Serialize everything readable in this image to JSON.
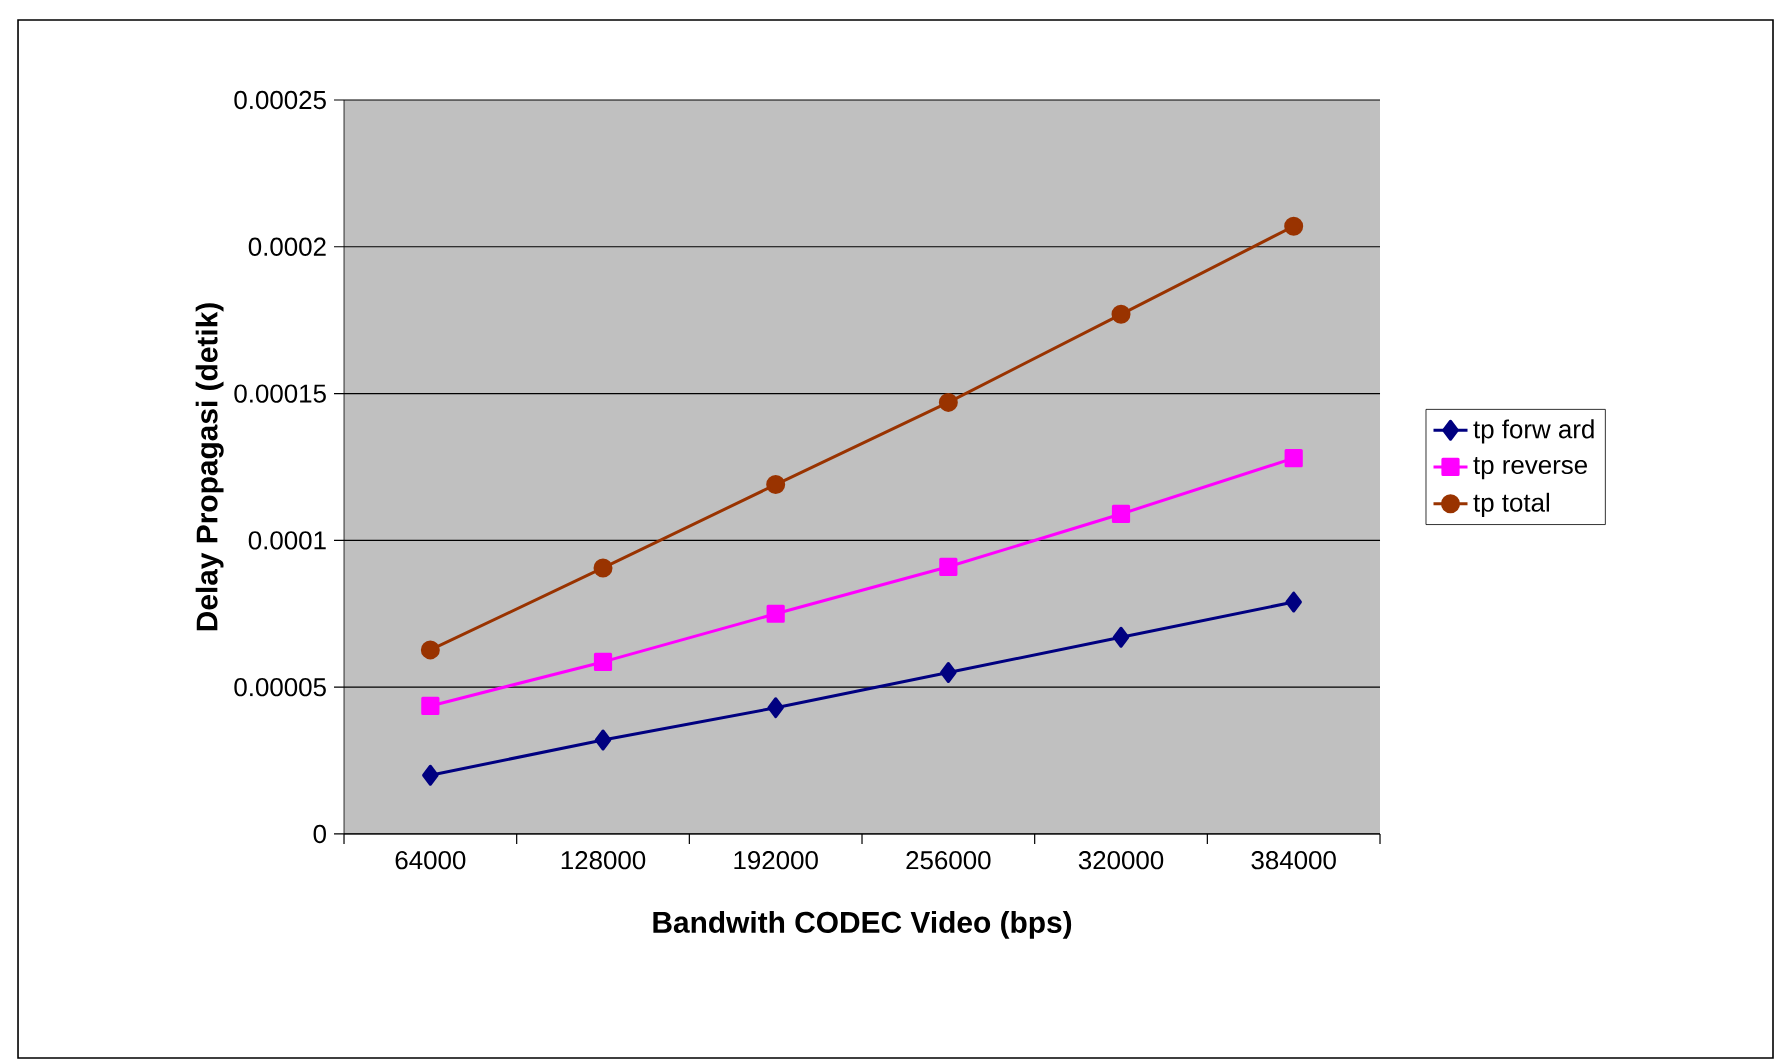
{
  "chart_data": {
    "type": "line",
    "xlabel": "Bandwith CODEC Video (bps)",
    "ylabel": "Delay Propagasi (detik)",
    "categories": [
      "64000",
      "128000",
      "192000",
      "256000",
      "320000",
      "384000"
    ],
    "series": [
      {
        "name": "tp forw ard",
        "color": "#000080",
        "marker": "diamond",
        "values": [
          2e-05,
          3.2e-05,
          4.3e-05,
          5.5e-05,
          6.7e-05,
          7.9e-05
        ]
      },
      {
        "name": "tp reverse",
        "color": "#ff00ff",
        "marker": "square",
        "values": [
          4.36e-05,
          5.86e-05,
          7.5e-05,
          9.1e-05,
          0.000109,
          0.000128
        ]
      },
      {
        "name": "tp total",
        "color": "#993300",
        "marker": "circle",
        "values": [
          6.27e-05,
          9.06e-05,
          0.000119,
          0.000147,
          0.000177,
          0.000207
        ]
      }
    ],
    "ylim": [
      0,
      0.00025
    ],
    "yticks": [
      {
        "value": 0,
        "label": "0"
      },
      {
        "value": 5e-05,
        "label": "0.00005"
      },
      {
        "value": 0.0001,
        "label": "0.0001"
      },
      {
        "value": 0.00015,
        "label": "0.00015"
      },
      {
        "value": 0.0002,
        "label": "0.0002"
      },
      {
        "value": 0.00025,
        "label": "0.00025"
      }
    ],
    "grid": "y",
    "legend": "right",
    "line_style": "solid"
  }
}
